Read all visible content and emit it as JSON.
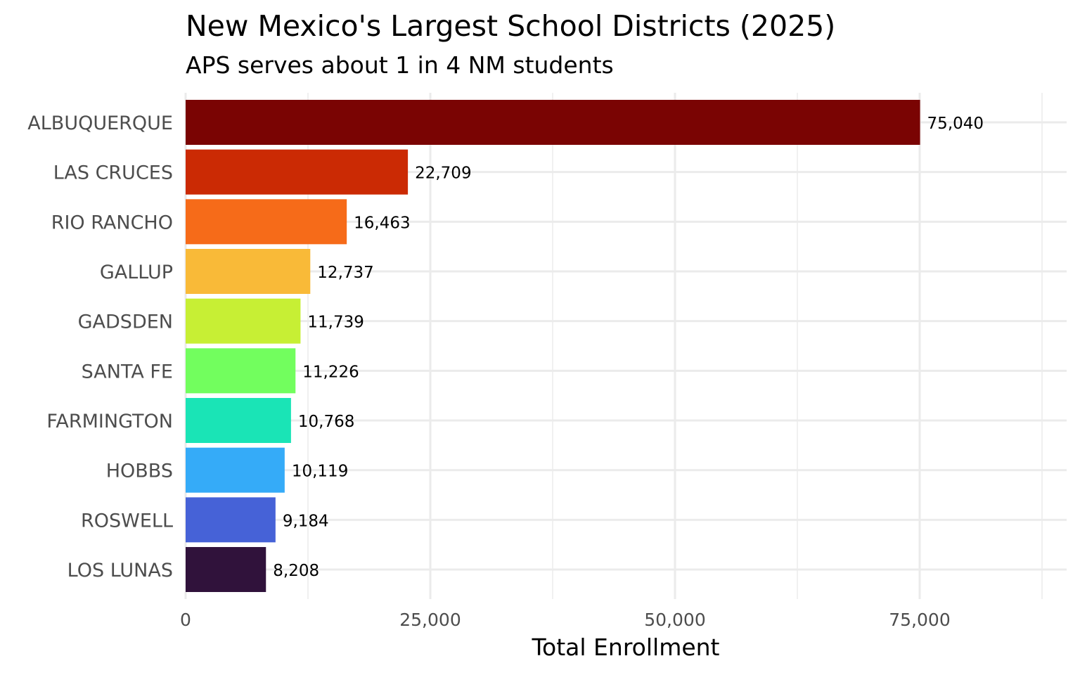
{
  "chart_data": {
    "type": "bar",
    "orientation": "horizontal",
    "title": "New Mexico's Largest School Districts (2025)",
    "subtitle": "APS serves about 1 in 4 NM students",
    "xlabel": "Total Enrollment",
    "ylabel": "",
    "xlim": [
      0,
      87500
    ],
    "x_ticks": [
      0,
      25000,
      50000,
      75000
    ],
    "x_tick_labels": [
      "0",
      "25,000",
      "50,000",
      "75,000"
    ],
    "grid": true,
    "legend": "none",
    "categories": [
      "ALBUQUERQUE",
      "LAS CRUCES",
      "RIO RANCHO",
      "GALLUP",
      "GADSDEN",
      "SANTA FE",
      "FARMINGTON",
      "HOBBS",
      "ROSWELL",
      "LOS LUNAS"
    ],
    "values": [
      75040,
      22709,
      16463,
      12737,
      11739,
      11226,
      10768,
      10119,
      9184,
      8208
    ],
    "value_labels": [
      "75,040",
      "22,709",
      "16,463",
      "12,737",
      "11,739",
      "11,226",
      "10,768",
      "10,119",
      "9,184",
      "8,208"
    ],
    "colors": [
      "#7a0403",
      "#cb2a04",
      "#f66b19",
      "#f9ba38",
      "#c7ef34",
      "#72fe5e",
      "#1ae4b6",
      "#35abf8",
      "#4662d7",
      "#30123b"
    ]
  }
}
